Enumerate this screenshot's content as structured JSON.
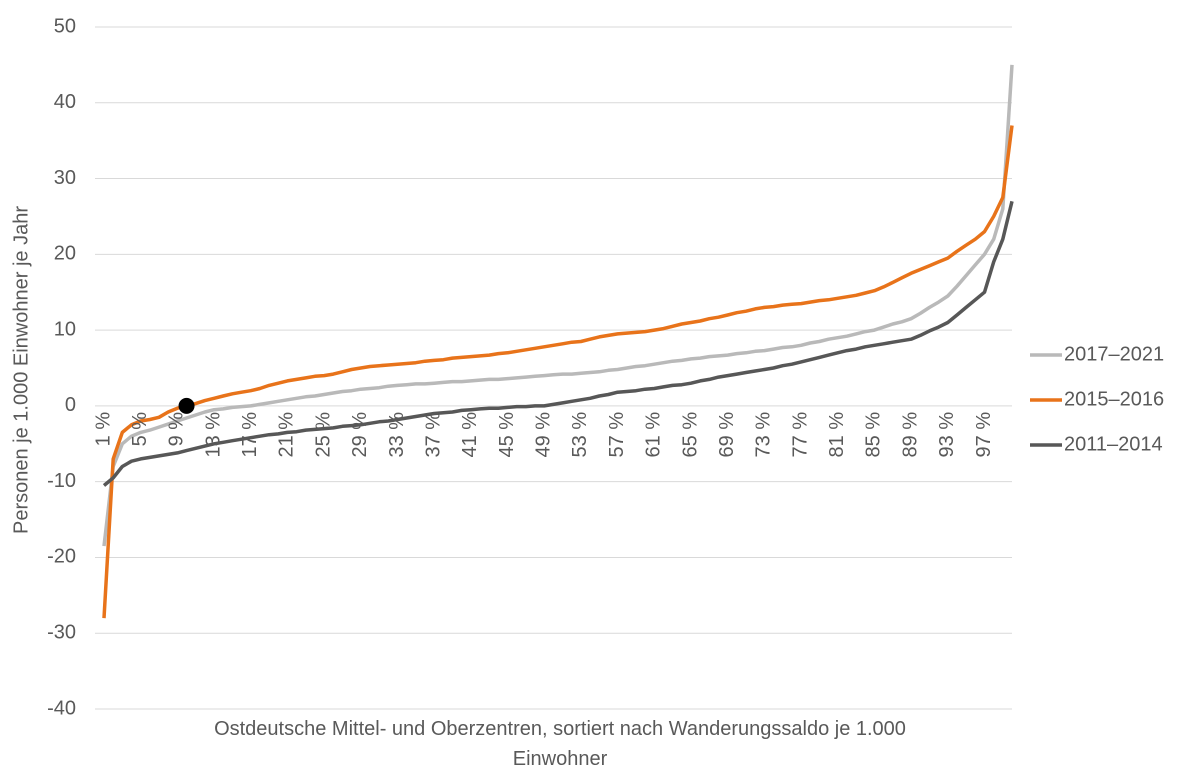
{
  "chart_data": {
    "type": "line",
    "y_label": "Personen je 1.000 Einwohner je Jahr",
    "x_label": "Ostdeutsche Mittel- und Oberzentren, sortiert nach Wanderungssaldo je 1.000 Einwohner",
    "categories": [
      "1 %",
      null,
      null,
      null,
      "5 %",
      null,
      null,
      null,
      "9 %",
      null,
      null,
      null,
      "13 %",
      null,
      null,
      null,
      "17 %",
      null,
      null,
      null,
      "21 %",
      null,
      null,
      null,
      "25 %",
      null,
      null,
      null,
      "29 %",
      null,
      null,
      null,
      "33 %",
      null,
      null,
      null,
      "37 %",
      null,
      null,
      null,
      "41 %",
      null,
      null,
      null,
      "45 %",
      null,
      null,
      null,
      "49 %",
      null,
      null,
      null,
      "53 %",
      null,
      null,
      null,
      "57 %",
      null,
      null,
      null,
      "61 %",
      null,
      null,
      null,
      "65 %",
      null,
      null,
      null,
      "69 %",
      null,
      null,
      null,
      "73 %",
      null,
      null,
      null,
      "77 %",
      null,
      null,
      null,
      "81 %",
      null,
      null,
      null,
      "85 %",
      null,
      null,
      null,
      "89 %",
      null,
      null,
      null,
      "93 %",
      null,
      null,
      null,
      "97 %",
      null,
      null,
      null
    ],
    "series": [
      {
        "name": "2017–2021",
        "color": "#b9b9b9",
        "values": [
          -18.5,
          -8,
          -5,
          -4,
          -3.5,
          -3.2,
          -2.8,
          -2.4,
          -2,
          -1.6,
          -1.2,
          -0.8,
          -0.5,
          -0.4,
          -0.2,
          -0.1,
          0,
          0.2,
          0.4,
          0.6,
          0.8,
          1,
          1.2,
          1.3,
          1.5,
          1.7,
          1.9,
          2,
          2.2,
          2.3,
          2.4,
          2.6,
          2.7,
          2.8,
          2.9,
          2.9,
          3,
          3.1,
          3.2,
          3.2,
          3.3,
          3.4,
          3.5,
          3.5,
          3.6,
          3.7,
          3.8,
          3.9,
          4,
          4.1,
          4.2,
          4.2,
          4.3,
          4.4,
          4.5,
          4.7,
          4.8,
          5,
          5.2,
          5.3,
          5.5,
          5.7,
          5.9,
          6,
          6.2,
          6.3,
          6.5,
          6.6,
          6.7,
          6.9,
          7,
          7.2,
          7.3,
          7.5,
          7.7,
          7.8,
          8,
          8.3,
          8.5,
          8.8,
          9,
          9.2,
          9.5,
          9.8,
          10,
          10.4,
          10.8,
          11.1,
          11.5,
          12.2,
          13,
          13.7,
          14.5,
          15.8,
          17.2,
          18.6,
          20,
          22,
          26,
          45
        ]
      },
      {
        "name": "2015–2016",
        "color": "#e8731a",
        "values": [
          -28,
          -7,
          -3.5,
          -2.5,
          -2,
          -1.8,
          -1.5,
          -0.8,
          -0.3,
          0,
          0.3,
          0.7,
          1,
          1.3,
          1.6,
          1.8,
          2,
          2.3,
          2.7,
          3,
          3.3,
          3.5,
          3.7,
          3.9,
          4,
          4.2,
          4.5,
          4.8,
          5,
          5.2,
          5.3,
          5.4,
          5.5,
          5.6,
          5.7,
          5.9,
          6,
          6.1,
          6.3,
          6.4,
          6.5,
          6.6,
          6.7,
          6.9,
          7,
          7.2,
          7.4,
          7.6,
          7.8,
          8,
          8.2,
          8.4,
          8.5,
          8.8,
          9.1,
          9.3,
          9.5,
          9.6,
          9.7,
          9.8,
          10,
          10.2,
          10.5,
          10.8,
          11,
          11.2,
          11.5,
          11.7,
          12,
          12.3,
          12.5,
          12.8,
          13,
          13.1,
          13.3,
          13.4,
          13.5,
          13.7,
          13.9,
          14,
          14.2,
          14.4,
          14.6,
          14.9,
          15.2,
          15.7,
          16.3,
          16.9,
          17.5,
          18,
          18.5,
          19,
          19.5,
          20.4,
          21.2,
          22,
          23,
          25,
          27.5,
          37
        ]
      },
      {
        "name": "2011–2014",
        "color": "#575757",
        "values": [
          -10.5,
          -9.5,
          -8,
          -7.3,
          -7,
          -6.8,
          -6.6,
          -6.4,
          -6.2,
          -5.9,
          -5.6,
          -5.3,
          -5,
          -4.8,
          -4.6,
          -4.4,
          -4.2,
          -4,
          -3.8,
          -3.7,
          -3.5,
          -3.4,
          -3.2,
          -3.1,
          -3,
          -2.9,
          -2.7,
          -2.6,
          -2.5,
          -2.3,
          -2.1,
          -2,
          -1.8,
          -1.6,
          -1.4,
          -1.2,
          -1,
          -0.9,
          -0.8,
          -0.6,
          -0.5,
          -0.4,
          -0.3,
          -0.3,
          -0.2,
          -0.1,
          -0.1,
          0,
          0,
          0.2,
          0.4,
          0.6,
          0.8,
          1,
          1.3,
          1.5,
          1.8,
          1.9,
          2,
          2.2,
          2.3,
          2.5,
          2.7,
          2.8,
          3,
          3.3,
          3.5,
          3.8,
          4,
          4.2,
          4.4,
          4.6,
          4.8,
          5,
          5.3,
          5.5,
          5.8,
          6.1,
          6.4,
          6.7,
          7,
          7.3,
          7.5,
          7.8,
          8,
          8.2,
          8.4,
          8.6,
          8.8,
          9.3,
          9.9,
          10.4,
          11,
          12,
          13,
          14,
          15,
          19,
          22,
          27
        ]
      }
    ],
    "marker": {
      "series_index": 1,
      "point_index": 9,
      "color": "#000000"
    },
    "ylim": [
      -40,
      50
    ],
    "yticks": [
      -40,
      -30,
      -20,
      -10,
      0,
      10,
      20,
      30,
      40,
      50
    ],
    "grid": true,
    "legend": "right"
  }
}
